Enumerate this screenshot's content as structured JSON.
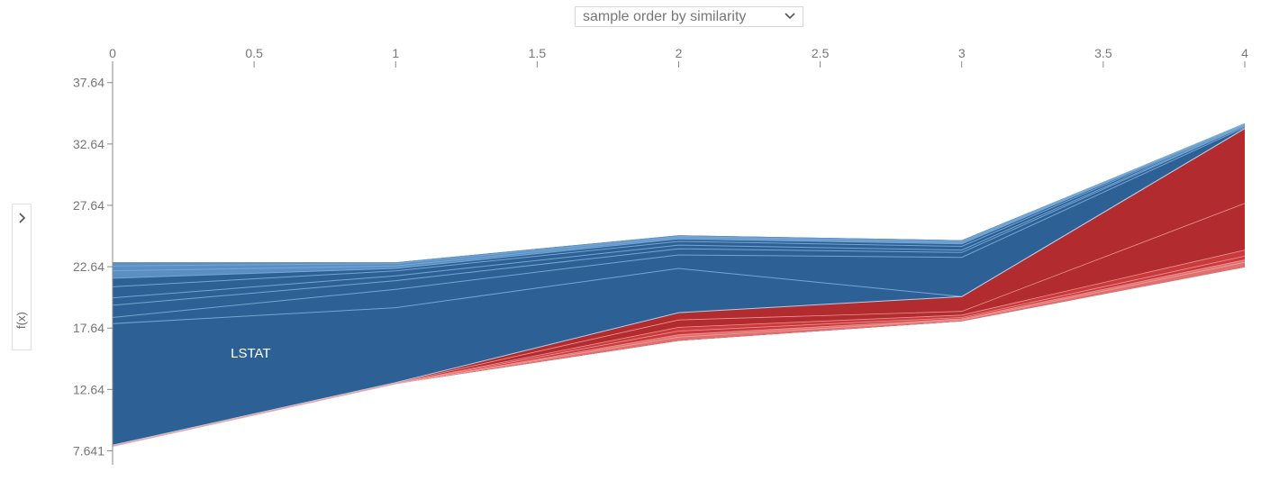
{
  "controls": {
    "ordering_label": "sample order by similarity",
    "ordering_icon": "chevron-down-icon",
    "yaxis_toggle_icon": "chevron-right-icon"
  },
  "colors": {
    "positive": "#b22b2e",
    "positive_light": "#e07070",
    "negative": "#2d6094",
    "negative_light": "#78a9d6",
    "axis": "#888888"
  },
  "chart_data": {
    "type": "area",
    "title": "",
    "xlabel": "",
    "ylabel": "f(x)",
    "x": [
      0,
      1,
      2,
      3,
      4
    ],
    "x_ticks": [
      "0",
      "0.5",
      "1",
      "1.5",
      "2",
      "2.5",
      "3",
      "3.5",
      "4"
    ],
    "x_tick_values": [
      0,
      0.5,
      1,
      1.5,
      2,
      2.5,
      3,
      3.5,
      4
    ],
    "y_ticks": [
      "7.641",
      "12.64",
      "17.64",
      "22.64",
      "27.64",
      "32.64",
      "37.64"
    ],
    "y_tick_values": [
      7.641,
      12.64,
      17.64,
      22.64,
      27.64,
      32.64,
      37.64
    ],
    "ylim": [
      6.5,
      38.5
    ],
    "xlim": [
      0,
      4
    ],
    "output_value": [
      8.1,
      13.2,
      18.9,
      20.2,
      33.9
    ],
    "base_value": [
      8.0,
      13.1,
      16.6,
      18.2,
      22.6
    ],
    "top_value": [
      23.0,
      23.0,
      25.2,
      24.8,
      34.3
    ],
    "positive_band_top": [
      8.1,
      13.2,
      18.9,
      20.2,
      33.9
    ],
    "negative_band_top": [
      23.0,
      23.0,
      25.2,
      24.8,
      34.3
    ],
    "positive_boundaries": [
      [
        8.05,
        13.15,
        18.3,
        19.0,
        27.8
      ],
      [
        8.03,
        13.12,
        17.7,
        18.7,
        24.0
      ],
      [
        8.02,
        13.11,
        17.4,
        18.5,
        23.5
      ],
      [
        8.01,
        13.1,
        17.1,
        18.4,
        23.2
      ],
      [
        8.0,
        13.1,
        16.9,
        18.3,
        23.0
      ]
    ],
    "negative_boundaries": [
      [
        18.0,
        19.3,
        22.5,
        20.2,
        33.9
      ],
      [
        18.5,
        20.8,
        23.6,
        23.4,
        34.0
      ],
      [
        19.5,
        21.5,
        24.1,
        23.8,
        34.1
      ],
      [
        20.1,
        21.9,
        24.4,
        24.0,
        34.15
      ],
      [
        21.0,
        22.3,
        24.7,
        24.3,
        34.2
      ],
      [
        21.7,
        22.5,
        24.9,
        24.5,
        34.25
      ],
      [
        22.3,
        22.7,
        25.0,
        24.6,
        34.28
      ],
      [
        22.7,
        22.9,
        25.1,
        24.7,
        34.3
      ]
    ],
    "annotations": [
      {
        "text": "LSTAT",
        "x": 0.5,
        "y": 15.6
      }
    ]
  }
}
